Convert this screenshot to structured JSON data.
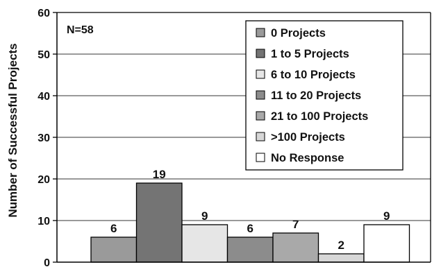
{
  "chart_data": {
    "type": "bar",
    "ylabel": "Number of Successful Projects",
    "xlabel": "",
    "title": "",
    "ylim": [
      0,
      60
    ],
    "yticks": [
      0,
      10,
      20,
      30,
      40,
      50,
      60
    ],
    "grid": true,
    "legend_position": "top-right",
    "annotation": "N=58",
    "categories": [
      "0 Projects",
      "1 to 5 Projects",
      "6 to 10 Projects",
      "11 to 20 Projects",
      "21 to 100 Projects",
      ">100 Projects",
      "No Response"
    ],
    "values": [
      6,
      19,
      9,
      6,
      7,
      2,
      9
    ],
    "colors": [
      "#9a9a9a",
      "#747474",
      "#e6e6e6",
      "#8c8c8c",
      "#a9a9a9",
      "#d7d7d7",
      "#ffffff"
    ]
  }
}
